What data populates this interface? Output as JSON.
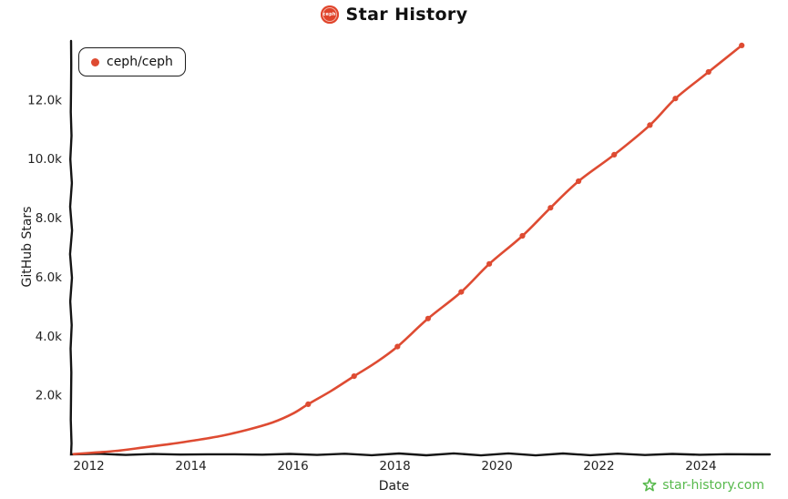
{
  "header": {
    "title": "Star History",
    "logo_text": "ceph"
  },
  "legend": {
    "items": [
      {
        "label": "ceph/ceph",
        "color": "#de4b32"
      }
    ]
  },
  "footer": {
    "brand": "star-history.com",
    "color": "#57b94c"
  },
  "chart_data": {
    "type": "line",
    "title": "Star History",
    "xlabel": "Date",
    "ylabel": "GitHub Stars",
    "grid": false,
    "legend_position": "top-left",
    "xlim": [
      2011.65,
      2025.35
    ],
    "ylim": [
      0,
      14000
    ],
    "x_tick_values": [
      2012,
      2014,
      2016,
      2018,
      2020,
      2022,
      2024
    ],
    "x_tick_labels": [
      "2012",
      "2014",
      "2016",
      "2018",
      "2020",
      "2022",
      "2024"
    ],
    "y_tick_values": [
      2000,
      4000,
      6000,
      8000,
      10000,
      12000
    ],
    "y_tick_labels": [
      "2.0k",
      "4.0k",
      "6.0k",
      "8.0k",
      "10.0k",
      "12.0k"
    ],
    "axis_color": "#141414",
    "series": [
      {
        "name": "ceph/ceph",
        "color": "#de4b32",
        "points": [
          [
            2011.7,
            10
          ],
          [
            2012.1,
            60
          ],
          [
            2012.6,
            130
          ],
          [
            2013.1,
            240
          ],
          [
            2013.6,
            350
          ],
          [
            2014.1,
            480
          ],
          [
            2014.6,
            630
          ],
          [
            2015.1,
            830
          ],
          [
            2015.6,
            1080
          ],
          [
            2016.0,
            1380
          ],
          [
            2016.3,
            1700
          ],
          [
            2016.75,
            2150
          ],
          [
            2017.2,
            2650
          ],
          [
            2017.6,
            3080
          ],
          [
            2018.05,
            3650
          ],
          [
            2018.65,
            4600
          ],
          [
            2019.3,
            5500
          ],
          [
            2019.85,
            6450
          ],
          [
            2020.5,
            7400
          ],
          [
            2021.05,
            8350
          ],
          [
            2021.6,
            9250
          ],
          [
            2022.3,
            10150
          ],
          [
            2023.0,
            11150
          ],
          [
            2023.5,
            12050
          ],
          [
            2024.15,
            12950
          ],
          [
            2024.8,
            13850
          ]
        ],
        "marker_points": [
          [
            2016.3,
            1700
          ],
          [
            2017.2,
            2650
          ],
          [
            2018.05,
            3650
          ],
          [
            2018.65,
            4600
          ],
          [
            2019.3,
            5500
          ],
          [
            2019.85,
            6450
          ],
          [
            2020.5,
            7400
          ],
          [
            2021.05,
            8350
          ],
          [
            2021.6,
            9250
          ],
          [
            2022.3,
            10150
          ],
          [
            2023.0,
            11150
          ],
          [
            2023.5,
            12050
          ],
          [
            2024.15,
            12950
          ],
          [
            2024.8,
            13850
          ]
        ]
      }
    ]
  }
}
